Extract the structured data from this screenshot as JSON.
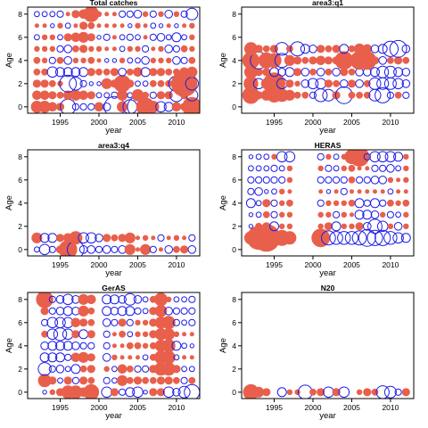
{
  "colors": {
    "positive": "#e8604c",
    "negative": "#1e1ee6",
    "frame": "#000000"
  },
  "chart_data": [
    {
      "type": "scatter",
      "subtype": "residual-bubble",
      "title": "Total catches",
      "xlabel": "year",
      "ylabel": "Age",
      "xticks": [
        "1995",
        "2000",
        "2005",
        "2010"
      ],
      "yticks": [
        "0",
        "2",
        "4",
        "6",
        "8"
      ],
      "xlim": [
        1990.8,
        2013.0
      ],
      "ylim": [
        -0.55,
        8.6
      ],
      "x_start": 1992,
      "ages": [
        0,
        1,
        2,
        3,
        4,
        5,
        6,
        7,
        8
      ],
      "rows": [
        [
          0.9,
          0.9,
          0.7,
          0.6,
          -1.2,
          -0.5,
          -0.5,
          -0.5,
          0.7,
          -0.6,
          -1.6,
          0.8,
          -1.1,
          -1.6,
          1.4,
          0.9,
          -0.8,
          -0.7,
          0.7,
          0.6,
          1.5
        ],
        [
          0.7,
          0.7,
          0.6,
          0.5,
          0.7,
          0.8,
          0.7,
          0.6,
          -0.4,
          -0.4,
          -0.5,
          0.8,
          -0.4,
          0.9,
          0.5,
          -0.5,
          0.6,
          0.6,
          -1.0,
          0.6,
          -0.9
        ],
        [
          0.6,
          0.6,
          0.5,
          0.4,
          -1.3,
          -1.0,
          -0.5,
          -0.3,
          -0.3,
          0.8,
          0.6,
          1.3,
          0.6,
          -0.4,
          -0.4,
          0.5,
          0.5,
          0.5,
          -1.2,
          2.0,
          -1.0
        ],
        [
          0.5,
          0.5,
          -0.8,
          -0.7,
          -0.7,
          -0.7,
          -0.7,
          0.6,
          0.5,
          0.5,
          0.6,
          -0.6,
          0.5,
          0.7,
          -0.7,
          0.6,
          0.6,
          0.5,
          0.5,
          0.7,
          0.8
        ],
        [
          0.5,
          0.4,
          -0.5,
          0.5,
          -0.6,
          0.4,
          0.4,
          0.5,
          0.3,
          -0.3,
          -0.3,
          0.4,
          -0.4,
          -0.4,
          -0.6,
          0.4,
          0.4,
          0.4,
          -0.6,
          -0.5,
          0.5
        ],
        [
          0.4,
          0.4,
          0.4,
          -0.5,
          -0.6,
          0.5,
          0.6,
          0.4,
          0.4,
          0.3,
          0.3,
          -0.4,
          0.4,
          0.4,
          -0.5,
          0.3,
          0.4,
          -0.6,
          -0.5,
          0.5,
          0.4
        ],
        [
          -0.4,
          0.4,
          0.4,
          -0.4,
          0.6,
          0.7,
          0.8,
          0.6,
          -0.3,
          -0.5,
          0.3,
          -0.4,
          -0.5,
          -0.4,
          0.3,
          -0.5,
          -0.6,
          -0.4,
          -0.7,
          -0.4,
          0.4
        ],
        [
          0.3,
          0.3,
          -0.3,
          0.4,
          -0.4,
          0.3,
          0.6,
          0.5,
          0.3,
          0.3,
          0.3,
          0.3,
          -0.3,
          0.4,
          0.3,
          -0.4,
          -0.3,
          0.3,
          -0.3,
          0.3,
          0.4
        ],
        [
          -0.4,
          -0.4,
          -0.4,
          -0.5,
          0.3,
          0.6,
          0.7,
          1.2,
          0.4,
          0.3,
          0.3,
          -0.5,
          -0.5,
          -0.6,
          0.4,
          -0.5,
          0.4,
          -0.6,
          0.4,
          -0.5,
          -0.9
        ]
      ]
    },
    {
      "type": "scatter",
      "subtype": "residual-bubble",
      "title": "area3:q1",
      "xlabel": "year",
      "ylabel": "Age",
      "xticks": [
        "1995",
        "2000",
        "2005",
        "2010"
      ],
      "yticks": [
        "0",
        "2",
        "4",
        "6",
        "8"
      ],
      "xlim": [
        1990.8,
        2013.0
      ],
      "ylim": [
        -0.55,
        8.6
      ],
      "x_start": 1992,
      "ages": [
        1,
        2,
        3,
        4,
        5
      ],
      "rows": [
        [
          1.3,
          0.6,
          0.8,
          1.1,
          1.0,
          0.8,
          0.5,
          0.5,
          -0.5,
          -1.0,
          -0.9,
          0.6,
          -1.3,
          0.5,
          0.5,
          0.5,
          -0.9,
          -1.2,
          -0.5,
          0.5,
          -0.5
        ],
        [
          1.1,
          -0.8,
          0.8,
          1.7,
          -0.8,
          0.6,
          0.4,
          -0.6,
          -0.8,
          -0.8,
          0.6,
          0.5,
          -0.6,
          0.6,
          -0.6,
          0.5,
          -0.9,
          -0.9,
          -0.9,
          -0.8,
          -0.6
        ],
        [
          1.0,
          0.6,
          0.6,
          -0.7,
          -0.6,
          -0.7,
          0.6,
          -0.6,
          0.5,
          -0.6,
          0.5,
          -0.6,
          0.6,
          0.5,
          -0.6,
          -0.6,
          -0.7,
          -0.9,
          -0.9,
          -0.7,
          -0.6
        ],
        [
          1.3,
          -1.3,
          1.2,
          1.1,
          -1.1,
          0.8,
          0.6,
          0.5,
          0.6,
          0.7,
          0.6,
          0.6,
          1.4,
          0.5,
          1.4,
          1.4,
          0.6,
          -0.6,
          0.5,
          0.6,
          0.5
        ],
        [
          1.0,
          0.6,
          0.5,
          0.6,
          -1.0,
          0.5,
          -1.1,
          -0.7,
          -0.6,
          0.6,
          0.5,
          0.6,
          -0.7,
          0.5,
          0.8,
          0.7,
          -0.6,
          -0.7,
          -1.2,
          -1.3,
          -0.6
        ]
      ]
    },
    {
      "type": "scatter",
      "subtype": "residual-bubble",
      "title": "area3:q4",
      "xlabel": "year",
      "ylabel": "Age",
      "xticks": [
        "1995",
        "2000",
        "2005",
        "2010"
      ],
      "yticks": [
        "0",
        "2",
        "4",
        "6",
        "8"
      ],
      "xlim": [
        1990.8,
        2013.0
      ],
      "ylim": [
        -0.55,
        8.6
      ],
      "x_start": 1992,
      "ages": [
        0,
        1
      ],
      "rows": [
        [
          -0.4,
          -0.8,
          -0.5,
          0.6,
          1.4,
          -1.3,
          -0.6,
          -0.6,
          -0.5,
          -0.6,
          -0.5,
          -0.6,
          0.8,
          0.3,
          0.8,
          -0.5,
          0.3,
          -0.6,
          0.5,
          0.6,
          -0.6
        ],
        [
          0.8,
          -0.7,
          -0.7,
          0.6,
          0.7,
          1.0,
          -0.8,
          -0.8,
          -0.6,
          0.6,
          0.5,
          0.6,
          0.8,
          0.3,
          0.4,
          0.3,
          -0.5,
          0.3,
          0.4,
          0.3,
          -0.5
        ]
      ]
    },
    {
      "type": "scatter",
      "subtype": "residual-bubble",
      "title": "HERAS",
      "xlabel": "year",
      "ylabel": "Age",
      "xticks": [
        "1995",
        "2000",
        "2005",
        "2010"
      ],
      "yticks": [
        "0",
        "2",
        "4",
        "6",
        "8"
      ],
      "xlim": [
        1990.8,
        2013.0
      ],
      "ylim": [
        -0.55,
        8.6
      ],
      "x_start": 1992,
      "ages": [
        1,
        2,
        3,
        4,
        5,
        6,
        7,
        8
      ],
      "rows": [
        [
          1.0,
          1.8,
          2.1,
          1.0,
          1.2,
          1.0,
          null,
          null,
          null,
          1.4,
          -1.1,
          -1.0,
          -1.0,
          -1.0,
          -1.1,
          -1.3,
          -1.2,
          -1.2,
          -1.0,
          -0.8,
          -0.7
        ],
        [
          -0.3,
          0.5,
          0.6,
          -0.7,
          0.4,
          0.4,
          null,
          null,
          null,
          0.4,
          0.6,
          -0.7,
          0.4,
          0.4,
          0.6,
          -0.6,
          -1.1,
          -0.8,
          0.4,
          -0.6,
          0.4
        ],
        [
          -0.3,
          -0.4,
          0.5,
          -0.5,
          0.4,
          0.4,
          null,
          null,
          null,
          0.4,
          0.4,
          -0.5,
          0.4,
          0.3,
          -0.7,
          -0.7,
          -0.6,
          0.4,
          -0.5,
          -0.4,
          0.4
        ],
        [
          -0.7,
          -0.4,
          0.6,
          -0.5,
          0.4,
          0.5,
          null,
          null,
          null,
          -0.5,
          0.4,
          0.4,
          0.4,
          0.5,
          -0.7,
          -0.5,
          -0.7,
          -0.5,
          0.5,
          0.4,
          0.5
        ],
        [
          -0.5,
          -0.6,
          -0.3,
          -0.4,
          0.4,
          0.3,
          null,
          null,
          null,
          0.3,
          -0.3,
          0.3,
          -0.5,
          0.3,
          0.3,
          0.3,
          0.3,
          0.3,
          -0.4,
          0.3,
          0.3
        ],
        [
          -0.5,
          -0.5,
          -0.5,
          -0.5,
          -0.5,
          0.4,
          null,
          null,
          null,
          -0.5,
          -0.5,
          -0.5,
          -0.5,
          0.5,
          -0.5,
          -0.5,
          -0.6,
          -0.6,
          0.4,
          0.3,
          0.4
        ],
        [
          -0.4,
          -0.4,
          -0.4,
          -0.5,
          -0.4,
          0.4,
          null,
          null,
          null,
          0.4,
          -0.5,
          -0.4,
          0.4,
          0.5,
          0.3,
          0.3,
          -0.5,
          -0.5,
          -0.6,
          -0.4,
          0.4
        ],
        [
          -0.3,
          -0.4,
          -0.4,
          0.4,
          -0.8,
          -0.8,
          null,
          null,
          null,
          -0.5,
          0.4,
          -0.4,
          0.4,
          1.1,
          1.5,
          -0.5,
          -0.8,
          -0.8,
          -0.8,
          -0.7,
          0.4
        ]
      ]
    },
    {
      "type": "scatter",
      "subtype": "residual-bubble",
      "title": "GerAS",
      "xlabel": "year",
      "ylabel": "Age",
      "xticks": [
        "1995",
        "2000",
        "2005",
        "2010"
      ],
      "yticks": [
        "0",
        "2",
        "4",
        "6",
        "8"
      ],
      "xlim": [
        1990.8,
        2013.0
      ],
      "ylim": [
        -0.55,
        8.6
      ],
      "x_start": 1992,
      "ages": [
        0,
        1,
        2,
        3,
        4,
        5,
        6,
        7,
        8
      ],
      "rows": [
        [
          null,
          -0.3,
          0.4,
          0.6,
          1.0,
          1.0,
          0.7,
          1.2,
          null,
          -0.8,
          0.6,
          -0.5,
          -0.7,
          -0.8,
          -0.3,
          0.6,
          0.6,
          -0.8,
          -0.6,
          -0.9,
          -1.2
        ],
        [
          null,
          1.0,
          0.6,
          -0.4,
          0.6,
          -0.5,
          0.6,
          0.5,
          null,
          -0.5,
          -0.4,
          0.8,
          0.5,
          0.6,
          0.5,
          0.5,
          0.6,
          0.6,
          0.5,
          -0.5,
          0.5
        ],
        [
          null,
          -1.0,
          -0.5,
          -0.6,
          -0.4,
          -0.7,
          0.5,
          0.6,
          null,
          0.4,
          -0.4,
          0.7,
          0.5,
          -0.5,
          -0.5,
          0.6,
          1.0,
          1.0,
          0.6,
          -0.4,
          -0.4
        ],
        [
          null,
          -0.7,
          -0.7,
          -0.7,
          -0.5,
          0.7,
          0.8,
          0.6,
          null,
          -0.6,
          0.4,
          0.3,
          0.3,
          0.3,
          -0.4,
          0.5,
          1.0,
          1.0,
          -0.4,
          0.3,
          0.3
        ],
        [
          null,
          -0.6,
          -0.7,
          -0.7,
          -0.7,
          -0.6,
          -0.5,
          -0.5,
          null,
          -0.5,
          0.3,
          0.3,
          0.5,
          0.5,
          0.4,
          0.5,
          0.9,
          1.0,
          -0.7,
          -0.4,
          -0.3
        ],
        [
          null,
          0.5,
          -0.8,
          -1.0,
          -0.8,
          0.6,
          -0.7,
          0.6,
          null,
          -0.5,
          0.3,
          0.5,
          -0.4,
          0.4,
          0.4,
          0.6,
          0.9,
          0.9,
          0.4,
          0.3,
          0.3
        ],
        [
          null,
          -0.5,
          -0.8,
          -0.8,
          -0.8,
          0.7,
          0.6,
          0.5,
          null,
          -0.6,
          -0.5,
          0.6,
          -0.5,
          0.4,
          0.4,
          0.6,
          0.9,
          1.0,
          -0.5,
          -0.4,
          -0.5
        ],
        [
          null,
          0.6,
          -0.5,
          -0.6,
          -0.7,
          -0.6,
          0.8,
          0.5,
          null,
          -0.7,
          -0.6,
          -0.7,
          -0.7,
          -0.5,
          -0.4,
          0.6,
          0.9,
          -0.6,
          -0.5,
          -0.5,
          -0.5
        ],
        [
          null,
          1.3,
          -0.5,
          -0.6,
          -0.8,
          -0.6,
          0.8,
          0.7,
          null,
          -0.7,
          -0.7,
          -0.6,
          -0.9,
          -0.6,
          -0.4,
          0.5,
          1.0,
          0.4,
          -0.4,
          -0.4,
          -0.5
        ]
      ]
    },
    {
      "type": "scatter",
      "subtype": "residual-bubble",
      "title": "N20",
      "xlabel": "year",
      "ylabel": "Age",
      "xticks": [
        "1995",
        "2000",
        "2005",
        "2010"
      ],
      "yticks": [
        "0",
        "2",
        "4",
        "6",
        "8"
      ],
      "xlim": [
        1990.8,
        2013.0
      ],
      "ylim": [
        -0.55,
        8.6
      ],
      "x_start": 1992,
      "ages": [
        0
      ],
      "rows": [
        [
          1.2,
          0.8,
          0.6,
          null,
          -0.7,
          0.4,
          0.4,
          -1.1,
          0.5,
          0.6,
          -0.8,
          0.6,
          -0.8,
          null,
          0.4,
          0.6,
          0.5,
          -1.0,
          -0.9,
          -0.5,
          0.6
        ]
      ]
    }
  ]
}
